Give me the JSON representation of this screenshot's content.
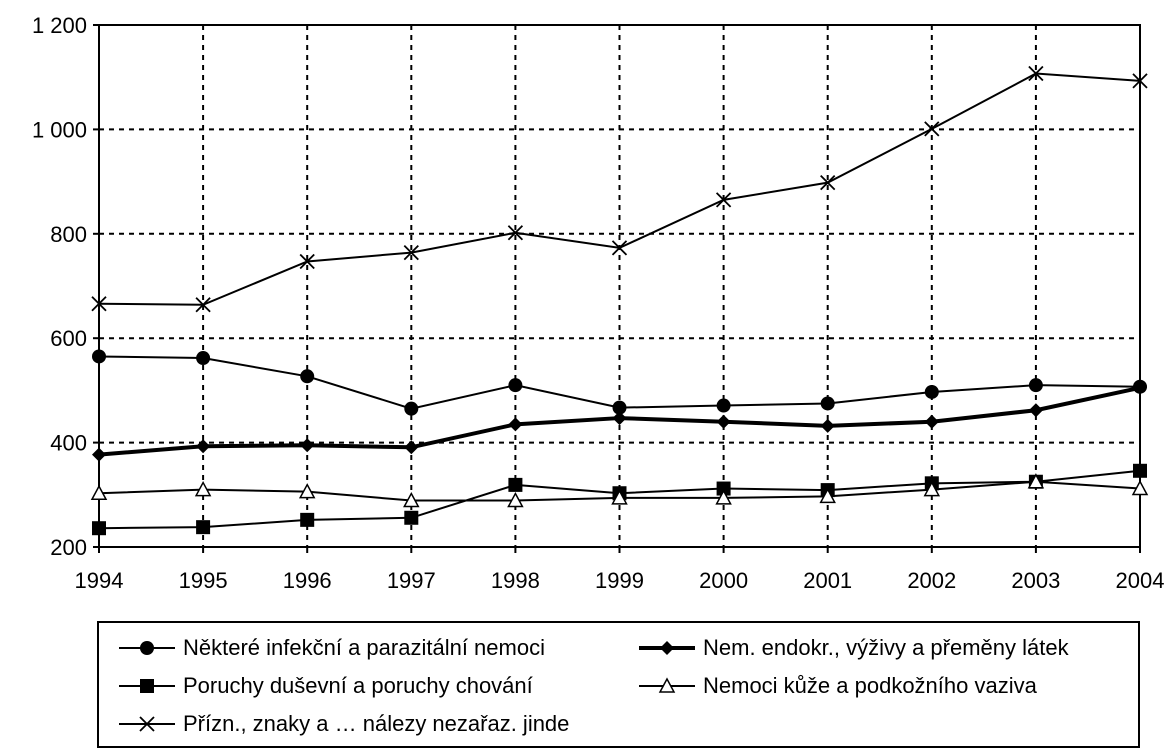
{
  "chart_data": {
    "type": "line",
    "categories": [
      "1994",
      "1995",
      "1996",
      "1997",
      "1998",
      "1999",
      "2000",
      "2001",
      "2002",
      "2003",
      "2004"
    ],
    "ylim": [
      200,
      1200
    ],
    "yticks": [
      "200",
      "400",
      "600",
      "800",
      "1 000",
      "1 200"
    ],
    "ytick_values": [
      200,
      400,
      600,
      800,
      1000,
      1200
    ],
    "grid": true,
    "legend_position": "bottom",
    "series": [
      {
        "name": "Některé infekční a parazitální nemoci",
        "marker": "circle",
        "width": 2,
        "values": [
          565,
          562,
          527,
          465,
          510,
          467,
          471,
          475,
          497,
          510,
          507
        ]
      },
      {
        "name": "Nem. endokr., výživy a přeměny látek",
        "marker": "diamond",
        "width": 4,
        "values": [
          377,
          393,
          395,
          391,
          435,
          447,
          440,
          432,
          440,
          462,
          505
        ]
      },
      {
        "name": "Poruchy duševní a poruchy chování",
        "marker": "square",
        "width": 2,
        "values": [
          236,
          238,
          252,
          256,
          319,
          303,
          312,
          309,
          322,
          325,
          346
        ]
      },
      {
        "name": "Nemoci kůže a podkožního vaziva",
        "marker": "triangle",
        "width": 2,
        "values": [
          303,
          310,
          306,
          289,
          289,
          294,
          294,
          297,
          310,
          325,
          312
        ]
      },
      {
        "name": "Přízn., znaky a … nálezy nezařaz. jinde",
        "marker": "x",
        "width": 2,
        "values": [
          666,
          664,
          747,
          764,
          802,
          773,
          865,
          898,
          1001,
          1107,
          1093
        ]
      }
    ]
  }
}
